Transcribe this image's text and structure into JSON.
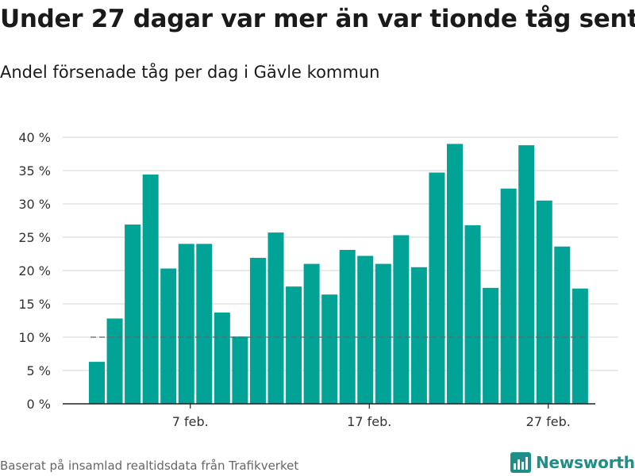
{
  "title": "Under 27 dagar var mer än var tionde tåg sent",
  "subtitle": "Andel försenade tåg per dag i Gävle kommun",
  "source": "Baserat på insamlad realtidsdata från Trafikverket",
  "brand": {
    "name": "Newsworthy",
    "icon": "newsworthy-logo-icon"
  },
  "colors": {
    "bar": "#00a396",
    "threshold": "#666666",
    "grid": "#dddddd",
    "brand": "#1e8f86"
  },
  "chart_data": {
    "type": "bar",
    "title": "Under 27 dagar var mer än var tionde tåg sent",
    "subtitle": "Andel försenade tåg per dag i Gävle kommun",
    "xlabel": "",
    "ylabel": "",
    "ylim": [
      0,
      40
    ],
    "yticks": [
      0,
      5,
      10,
      15,
      20,
      25,
      30,
      35,
      40
    ],
    "ytick_labels": [
      "0 %",
      "5 %",
      "10 %",
      "15 %",
      "20 %",
      "25 %",
      "30 %",
      "35 %",
      "40 %"
    ],
    "x_tick_labels": [
      {
        "day_index": 5,
        "label": "7 feb."
      },
      {
        "day_index": 15,
        "label": "17 feb."
      },
      {
        "day_index": 25,
        "label": "27 feb."
      }
    ],
    "categories": [
      "2 feb",
      "3 feb",
      "4 feb",
      "5 feb",
      "6 feb",
      "7 feb",
      "8 feb",
      "9 feb",
      "10 feb",
      "11 feb",
      "12 feb",
      "13 feb",
      "14 feb",
      "15 feb",
      "16 feb",
      "17 feb",
      "18 feb",
      "19 feb",
      "20 feb",
      "21 feb",
      "22 feb",
      "23 feb",
      "24 feb",
      "25 feb",
      "26 feb",
      "27 feb",
      "28 feb",
      "29 feb"
    ],
    "values": [
      6.3,
      12.8,
      26.9,
      34.4,
      20.3,
      24.0,
      24.0,
      13.7,
      10.1,
      21.9,
      25.7,
      17.6,
      21.0,
      16.4,
      23.1,
      22.2,
      21.0,
      25.3,
      20.5,
      34.7,
      39.0,
      26.8,
      17.4,
      32.3,
      38.8,
      30.5,
      23.6,
      17.3
    ],
    "threshold": 10,
    "grid": true,
    "legend": "none"
  }
}
